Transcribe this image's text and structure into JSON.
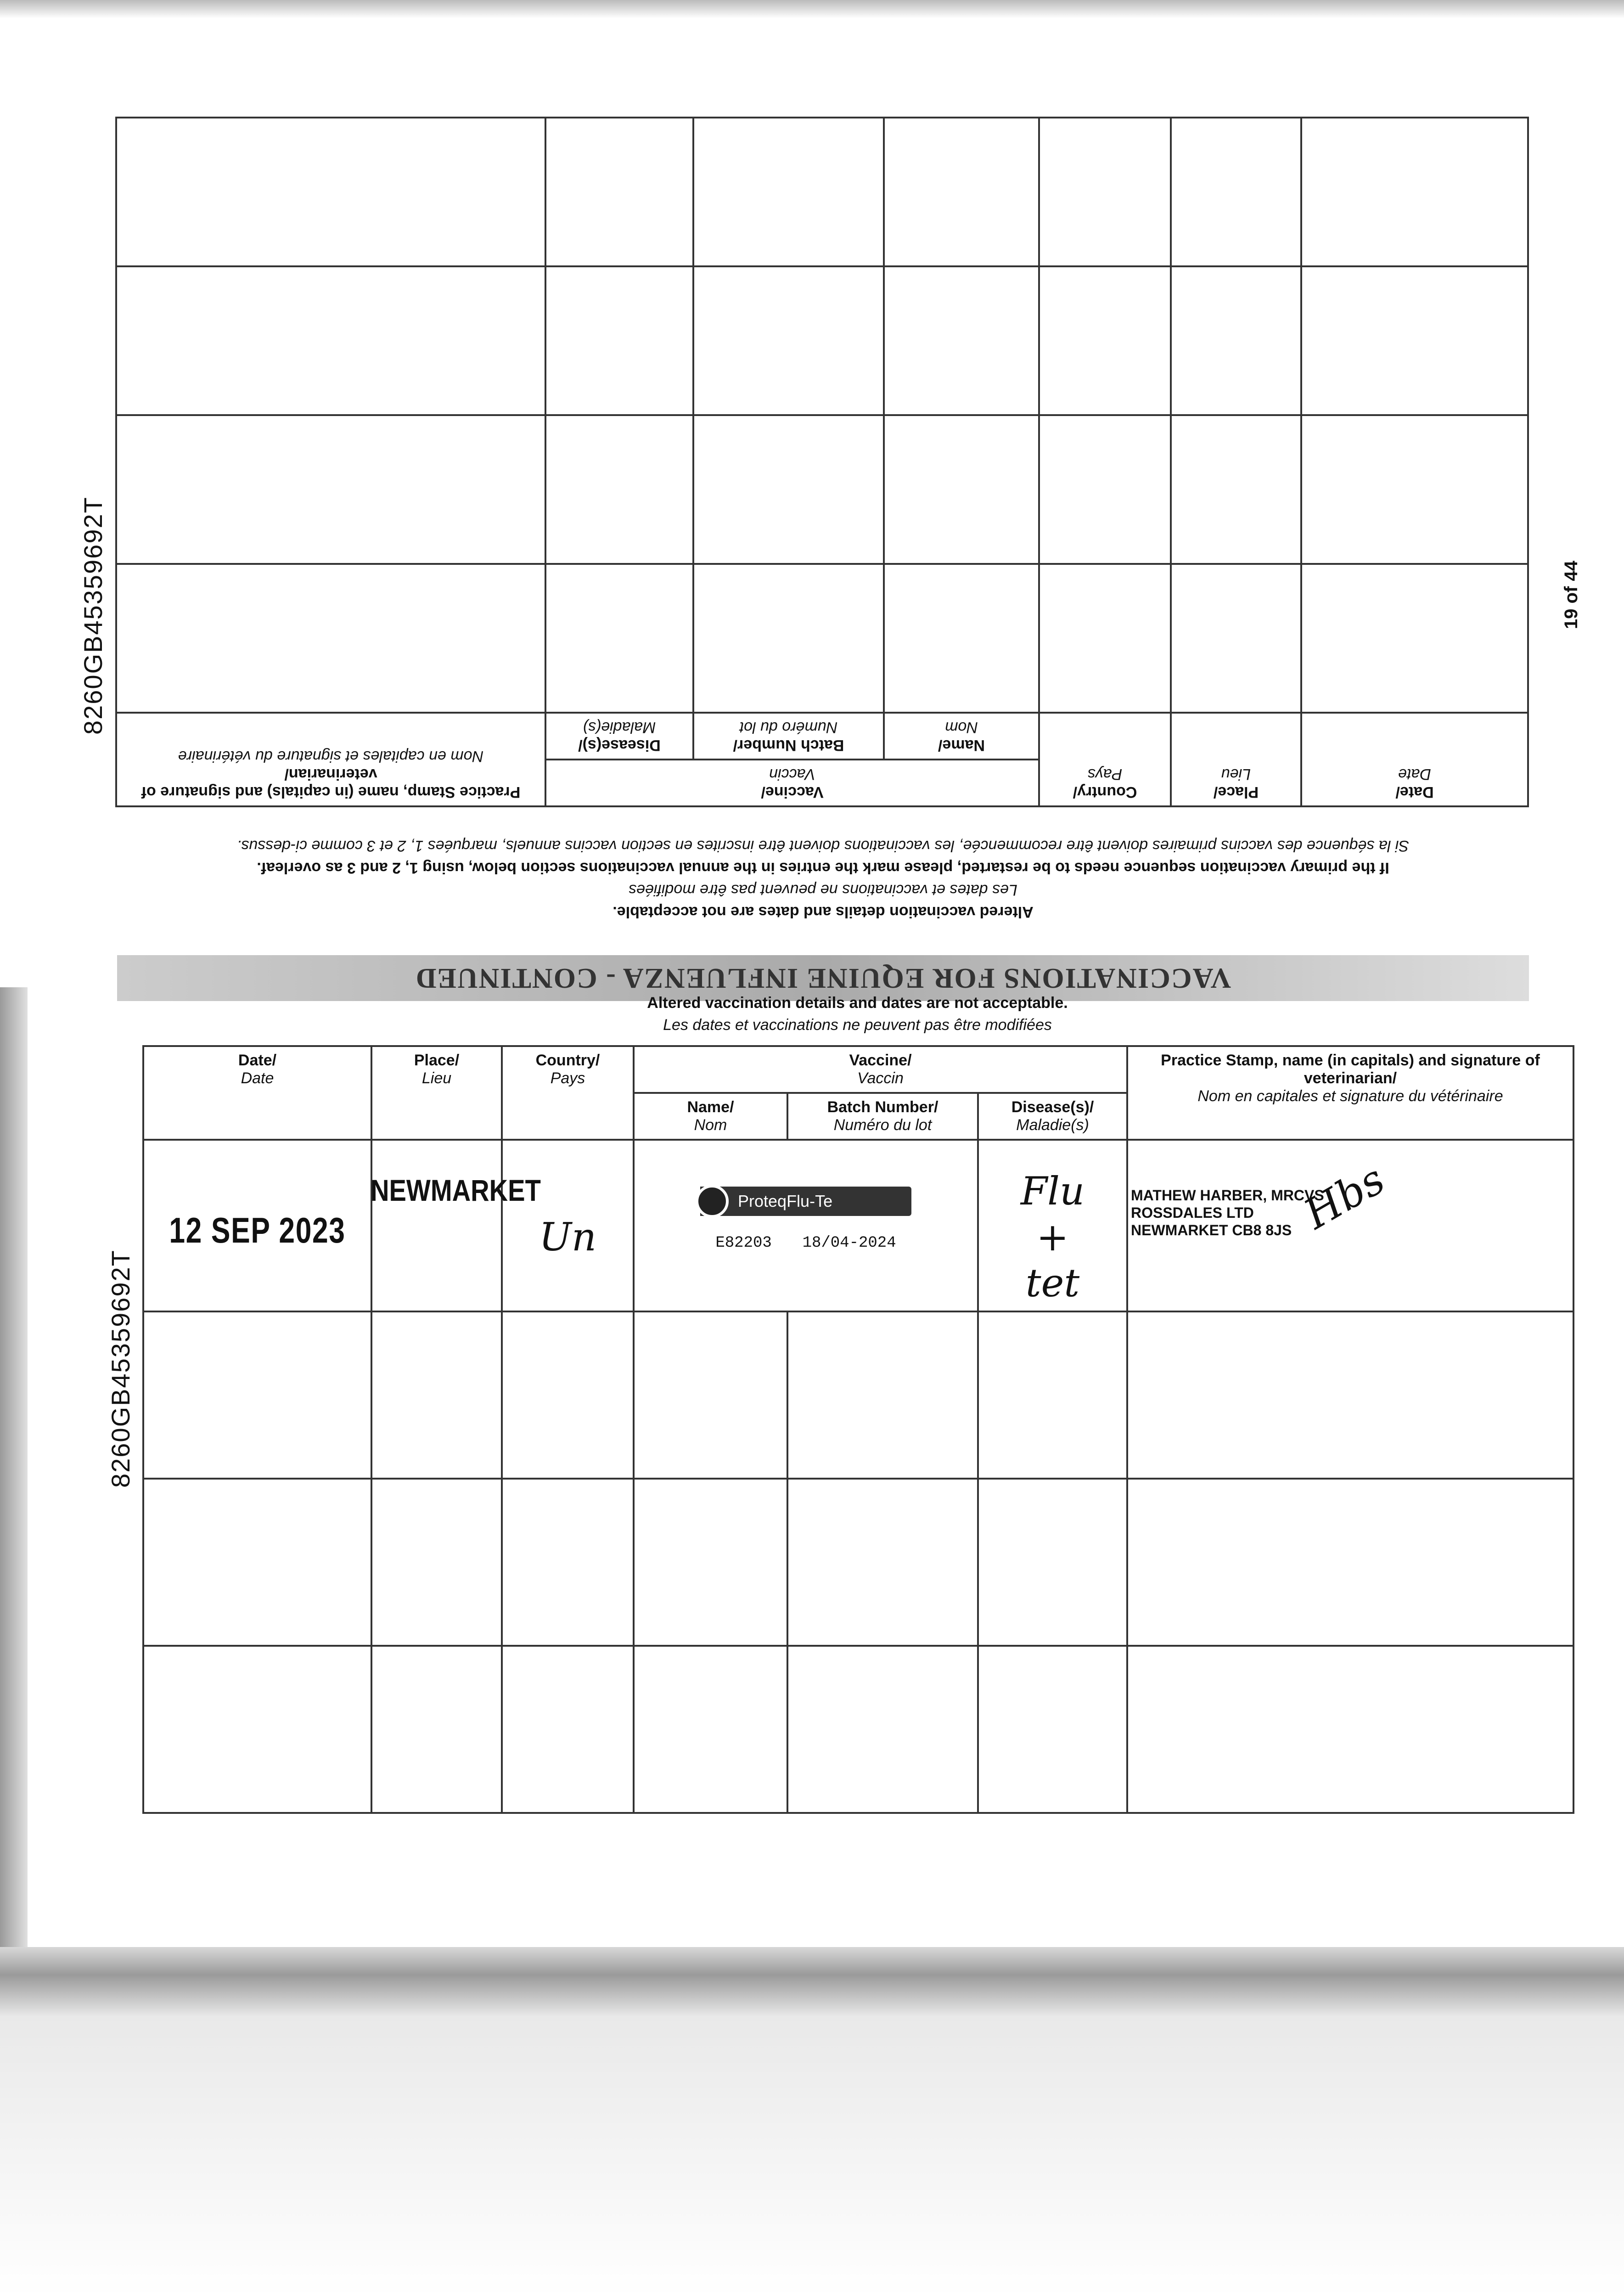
{
  "document": {
    "side_id": "8260GB45359692T",
    "page_number": "19 of 44"
  },
  "previous_page": {
    "heading": "VACCINATIONS FOR EQUINE INFLUENZA - CONTINUED",
    "notes": {
      "altered_en": "Altered vaccination details and dates are not acceptable.",
      "altered_fr": "Les dates et vaccinations ne peuvent pas être modifiées",
      "restart_en": "If the primary vaccination sequence needs to be restarted, please mark the entries in the annual vaccinations section below, using 1, 2 and 3 as overleaf.",
      "restart_fr": "Si la séquence des vaccins primaires doivent être recommencée, les vaccinations doivent être inscrites en section vaccins annuels, marquées 1, 2 et 3 comme ci-dessus."
    },
    "rows": 4
  },
  "table": {
    "notes": {
      "altered_en": "Altered vaccination details and dates are not acceptable.",
      "altered_fr": "Les dates et vaccinations ne peuvent pas être modifiées"
    },
    "headers": {
      "date_en": "Date/",
      "date_fr": "Date",
      "place_en": "Place/",
      "place_fr": "Lieu",
      "country_en": "Country/",
      "country_fr": "Pays",
      "vaccine_en": "Vaccine/",
      "vaccine_fr": "Vaccin",
      "name_en": "Name/",
      "name_fr": "Nom",
      "batch_en": "Batch Number/",
      "batch_fr": "Numéro du lot",
      "disease_en": "Disease(s)/",
      "disease_fr": "Maladie(s)",
      "practice_en": "Practice Stamp, name (in capitals) and signature of veterinarian/",
      "practice_fr": "Nom en capitales et signature du vétérinaire"
    },
    "entry": {
      "date": "12 SEP 2023",
      "place": "NEWMARKET",
      "country": "Un",
      "vaccine_brand": "ProteqFlu-Te",
      "batch": "E82203",
      "expiry": "18/04-2024",
      "disease_line1": "Flu",
      "disease_line2": "+",
      "disease_line3": "tet",
      "vet_line1": "MATHEW HARBER, MRCVS",
      "vet_line2": "ROSSDALES LTD",
      "vet_line3": "NEWMARKET CB8 8JS",
      "signature": "Hbs"
    },
    "empty_rows": 3
  }
}
